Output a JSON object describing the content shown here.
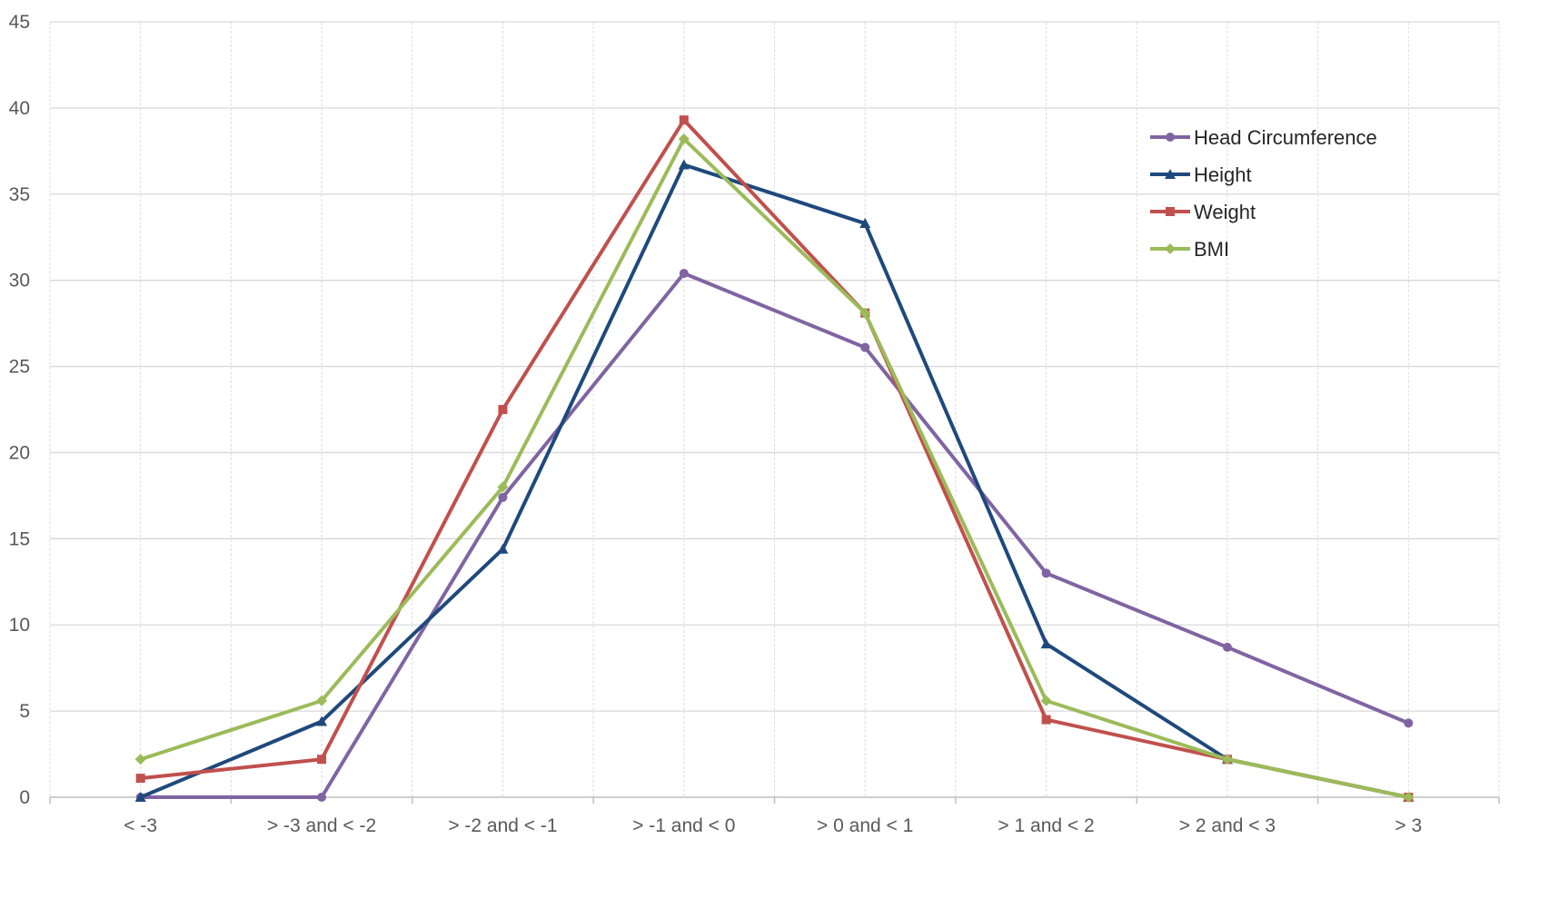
{
  "chart_data": {
    "type": "line",
    "categories": [
      "< -3",
      "> -3 and < -2",
      "> -2 and < -1",
      "> -1 and < 0",
      "> 0 and < 1",
      "> 1 and < 2",
      "> 2 and < 3",
      "> 3"
    ],
    "ylim": [
      0,
      45
    ],
    "yticks": [
      0,
      5,
      10,
      15,
      20,
      25,
      30,
      35,
      40,
      45
    ],
    "grid": true,
    "legend_position": "top-right",
    "series": [
      {
        "name": "Head Circumference",
        "color": "#8064a2",
        "marker": "circle",
        "values": [
          0,
          0,
          17.4,
          30.4,
          26.1,
          13.0,
          8.7,
          4.3
        ]
      },
      {
        "name": "Height",
        "color": "#1f497d",
        "marker": "triangle",
        "values": [
          0,
          4.4,
          14.4,
          36.7,
          33.3,
          8.9,
          2.2,
          0
        ]
      },
      {
        "name": "Weight",
        "color": "#c0504d",
        "marker": "square",
        "values": [
          1.1,
          2.2,
          22.5,
          39.3,
          28.1,
          4.5,
          2.2,
          0
        ]
      },
      {
        "name": "BMI",
        "color": "#9bbb59",
        "marker": "diamond",
        "values": [
          2.2,
          5.6,
          18.0,
          38.2,
          28.1,
          5.6,
          2.2,
          0
        ]
      }
    ]
  }
}
